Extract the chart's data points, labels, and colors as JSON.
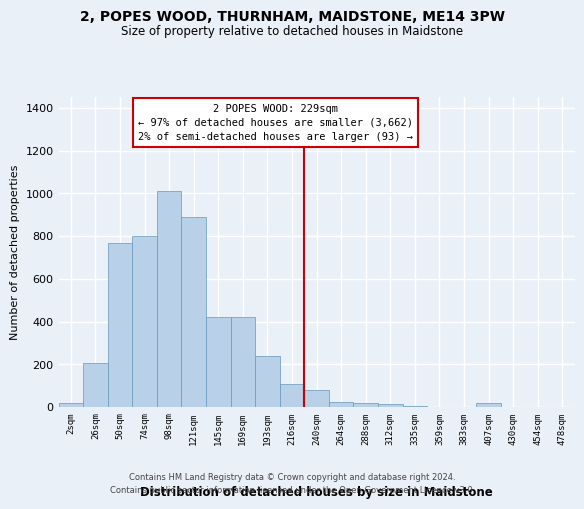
{
  "title": "2, POPES WOOD, THURNHAM, MAIDSTONE, ME14 3PW",
  "subtitle": "Size of property relative to detached houses in Maidstone",
  "xlabel": "Distribution of detached houses by size in Maidstone",
  "ylabel": "Number of detached properties",
  "bar_color": "#b8d0e8",
  "bar_edge_color": "#6699bb",
  "categories": [
    "2sqm",
    "26sqm",
    "50sqm",
    "74sqm",
    "98sqm",
    "121sqm",
    "145sqm",
    "169sqm",
    "193sqm",
    "216sqm",
    "240sqm",
    "264sqm",
    "288sqm",
    "312sqm",
    "335sqm",
    "359sqm",
    "383sqm",
    "407sqm",
    "430sqm",
    "454sqm",
    "478sqm"
  ],
  "values": [
    20,
    205,
    770,
    800,
    1010,
    890,
    420,
    420,
    240,
    110,
    80,
    25,
    20,
    15,
    5,
    0,
    0,
    20,
    0,
    0,
    0
  ],
  "property_label": "2 POPES WOOD: 229sqm",
  "annotation_line1": "← 97% of detached houses are smaller (3,662)",
  "annotation_line2": "2% of semi-detached houses are larger (93) →",
  "ylim": [
    0,
    1450
  ],
  "yticks": [
    0,
    200,
    400,
    600,
    800,
    1000,
    1200,
    1400
  ],
  "footer1": "Contains HM Land Registry data © Crown copyright and database right 2024.",
  "footer2": "Contains public sector information licensed under the Open Government Licence v3.0.",
  "background_color": "#eaf0f8",
  "grid_color": "#ffffff",
  "annotation_box_color": "#cc0000",
  "vline_color": "#cc0000",
  "vline_pos": 9.5
}
